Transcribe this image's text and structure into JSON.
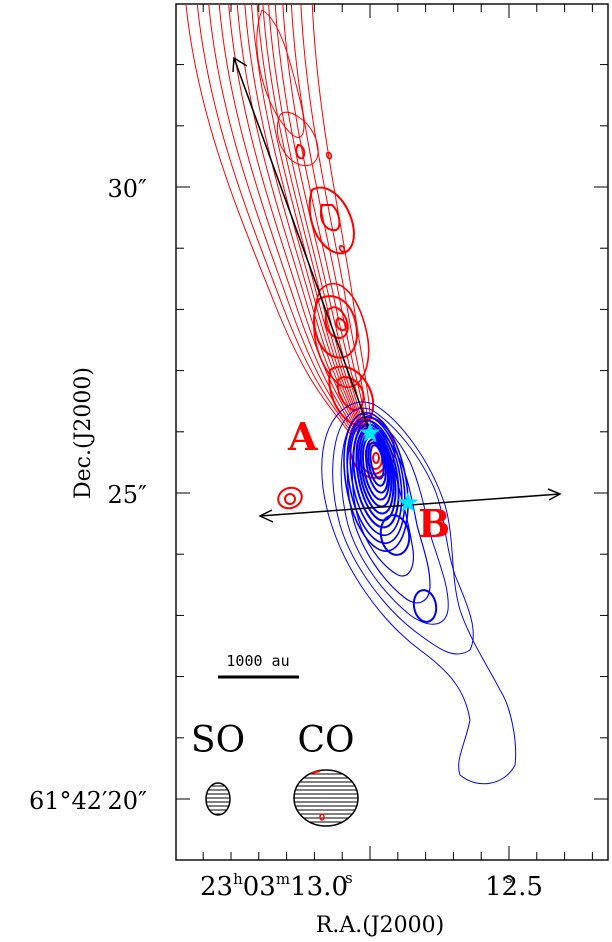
{
  "axes": {
    "xlabel": "R.A.(J2000)",
    "ylabel": "Dec.(J2000)",
    "x_ticks": [
      {
        "h": "23",
        "m": "03",
        "s": "13.0",
        "hms": true
      },
      {
        "s": "12.5",
        "hms": false
      }
    ],
    "y_ticks": [
      "30″",
      "25″",
      "61°42′20″"
    ]
  },
  "sources": [
    {
      "label": "A"
    },
    {
      "label": "B"
    }
  ],
  "scalebar": {
    "label": "1000 au"
  },
  "beams": [
    {
      "label": "SO"
    },
    {
      "label": "CO"
    }
  ],
  "colors": {
    "redshifted": "#ff0000",
    "blueshifted": "#0000ff",
    "stars": "#00e5ff",
    "arrows": "#000000"
  }
}
